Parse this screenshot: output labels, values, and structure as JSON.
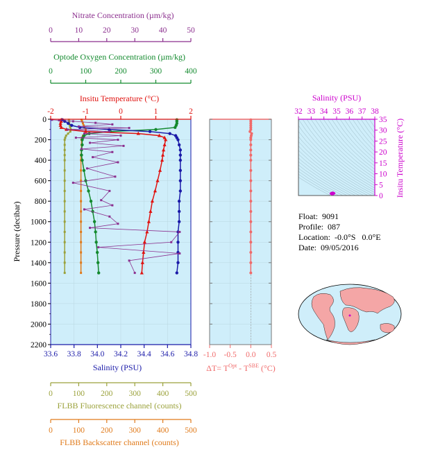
{
  "colors": {
    "nitrate": "#8b2f8e",
    "oxygen": "#138a2e",
    "temperature": "#e0120f",
    "salinity": "#1a1aa8",
    "pressure_axis": "#000000",
    "fluorescence": "#9aa13a",
    "backscatter": "#e07a1a",
    "delta_t": "#f06a6a",
    "ts_axis": "#cc00cc",
    "plot_bg": "#cfeefa",
    "map_land": "#f4a6a6"
  },
  "axes_text": {
    "nitrate_title": "Nitrate Concentration (µm/kg)",
    "oxygen_title": "Optode Oxygen Concentration (µm/kg)",
    "temperature_title": "Insitu Temperature (°C)",
    "salinity_title": "Salinity (PSU)",
    "pressure_title": "Pressure (decibar)",
    "fluorescence_title": "FLBB Fluorescence channel (counts)",
    "backscatter_title": "FLBB Backscatter channel (counts)",
    "delta_title_main": "ΔT= T",
    "delta_sup1": "Opt",
    "delta_mid": " - T",
    "delta_sup2": "SBE",
    "delta_tail": " (°C)",
    "ts_top_title": "Salinity (PSU)",
    "ts_right_title": "Insitu Temperature (°C)"
  },
  "info": {
    "float_label": "Float:",
    "float_value": "9091",
    "profile_label": "Profile:",
    "profile_value": "087",
    "location_label": "Location:",
    "location_lat": "-0.0°S",
    "location_lon": "0.0°E",
    "date_label": "Date:",
    "date_value": "09/05/2016"
  },
  "chart_data": [
    {
      "type": "line",
      "name": "profile",
      "pressure_ticks": [
        0,
        200,
        400,
        600,
        800,
        1000,
        1200,
        1400,
        1600,
        1800,
        2000,
        2200
      ],
      "pressure_range": [
        0,
        2200
      ],
      "axes": {
        "nitrate": {
          "range": [
            0,
            50
          ],
          "ticks": [
            0,
            10,
            20,
            30,
            40,
            50
          ]
        },
        "oxygen": {
          "range": [
            0,
            400
          ],
          "ticks": [
            0,
            100,
            200,
            300,
            400
          ]
        },
        "temperature": {
          "range": [
            -2,
            2
          ],
          "ticks": [
            -2,
            -1,
            0,
            1,
            2
          ]
        },
        "salinity": {
          "range": [
            33.6,
            34.8
          ],
          "ticks": [
            33.6,
            33.8,
            34.0,
            34.2,
            34.4,
            34.6,
            34.8
          ]
        },
        "fluorescence": {
          "range": [
            0,
            500
          ],
          "ticks": [
            0,
            100,
            200,
            300,
            400,
            500
          ]
        },
        "backscatter": {
          "range": [
            0,
            500
          ],
          "ticks": [
            0,
            100,
            200,
            300,
            400,
            500
          ]
        }
      },
      "pressure": [
        5,
        20,
        40,
        60,
        80,
        100,
        120,
        140,
        160,
        180,
        200,
        250,
        300,
        350,
        400,
        500,
        600,
        700,
        800,
        900,
        1000,
        1100,
        1200,
        1300,
        1400,
        1500
      ],
      "temperature": [
        -1.7,
        -1.7,
        -1.72,
        -1.72,
        -1.7,
        -1.55,
        -1.0,
        0.5,
        1.1,
        1.25,
        1.28,
        1.25,
        1.22,
        1.2,
        1.18,
        1.12,
        1.05,
        0.98,
        0.9,
        0.85,
        0.8,
        0.75,
        0.68,
        0.65,
        0.62,
        0.6
      ],
      "salinity": [
        33.7,
        33.72,
        33.75,
        33.78,
        33.85,
        34.1,
        34.45,
        34.62,
        34.67,
        34.68,
        34.69,
        34.7,
        34.71,
        34.71,
        34.71,
        34.71,
        34.71,
        34.71,
        34.7,
        34.7,
        34.7,
        34.69,
        34.69,
        34.69,
        34.69,
        34.68
      ],
      "oxygen": [
        360,
        360,
        360,
        358,
        355,
        300,
        170,
        110,
        95,
        92,
        90,
        90,
        88,
        88,
        90,
        95,
        100,
        108,
        115,
        120,
        125,
        128,
        130,
        133,
        135,
        137
      ],
      "nitrate": [
        27,
        27,
        27,
        27,
        27,
        28,
        29,
        29.5,
        30,
        30,
        30,
        30.5,
        31,
        31.5,
        32,
        32,
        32,
        32.5,
        32.5,
        33,
        33,
        33,
        33,
        33,
        33,
        33
      ],
      "nitrate_points": [
        [
          0.5,
          5
        ],
        [
          3,
          10
        ],
        [
          8,
          20
        ],
        [
          16,
          35
        ],
        [
          22,
          50
        ],
        [
          10,
          70
        ],
        [
          28,
          85
        ],
        [
          6,
          100
        ],
        [
          21,
          120
        ],
        [
          12,
          140
        ],
        [
          25,
          160
        ],
        [
          9,
          180
        ],
        [
          24,
          200
        ],
        [
          14,
          230
        ],
        [
          26,
          260
        ],
        [
          11,
          290
        ],
        [
          22,
          320
        ],
        [
          15,
          370
        ],
        [
          24,
          420
        ],
        [
          13,
          480
        ],
        [
          23,
          560
        ],
        [
          8,
          620
        ],
        [
          21,
          700
        ],
        [
          18,
          790
        ],
        [
          22,
          840
        ],
        [
          12,
          880
        ],
        [
          21,
          950
        ],
        [
          24,
          1020
        ],
        [
          14,
          1060
        ],
        [
          46,
          1100
        ],
        [
          43,
          1200
        ],
        [
          17,
          1250
        ],
        [
          46,
          1310
        ],
        [
          28,
          1380
        ],
        [
          30,
          1500
        ]
      ],
      "fluorescence": [
        65,
        66,
        66,
        68,
        70,
        72,
        70,
        62,
        55,
        52,
        50,
        50,
        50,
        50,
        50,
        50,
        50,
        50,
        50,
        50,
        50,
        50,
        50,
        50,
        50,
        50
      ],
      "backscatter": [
        110,
        112,
        115,
        118,
        120,
        125,
        125,
        120,
        115,
        112,
        110,
        110,
        110,
        108,
        108,
        108,
        108,
        108,
        108,
        108,
        108,
        108,
        108,
        108,
        108,
        108
      ]
    },
    {
      "type": "line",
      "name": "delta_t",
      "x_range": [
        -1.0,
        0.5
      ],
      "x_ticks": [
        -1.0,
        -0.5,
        0.0,
        0.5
      ],
      "x_tick_labels": [
        "-1.0",
        "-0.5",
        "0.0",
        "0.5"
      ],
      "pressure": [
        5,
        20,
        40,
        60,
        80,
        100,
        120,
        140,
        160,
        180,
        200,
        250,
        300,
        350,
        400,
        500,
        600,
        700,
        800,
        900,
        1000,
        1100,
        1200,
        1300,
        1400,
        1500
      ],
      "values": [
        0.0,
        0.0,
        0.0,
        0.0,
        0.0,
        0.0,
        -0.02,
        0.02,
        0.01,
        0.0,
        0.0,
        0.0,
        0.0,
        0.0,
        0.0,
        0.0,
        0.0,
        0.0,
        0.0,
        0.0,
        0.0,
        0.0,
        0.0,
        0.0,
        0.0,
        0.0
      ]
    },
    {
      "type": "scatter",
      "name": "ts_diagram",
      "x_range": [
        32,
        38
      ],
      "x_ticks": [
        32,
        33,
        34,
        35,
        36,
        37,
        38
      ],
      "y_range": [
        0,
        35
      ],
      "y_ticks": [
        0,
        5,
        10,
        15,
        20,
        25,
        30,
        35
      ],
      "points": [
        [
          34.7,
          1.3
        ],
        [
          34.6,
          1.1
        ],
        [
          34.55,
          0.9
        ],
        [
          34.7,
          0.7
        ],
        [
          34.65,
          0.6
        ],
        [
          34.8,
          1.0
        ]
      ]
    }
  ]
}
